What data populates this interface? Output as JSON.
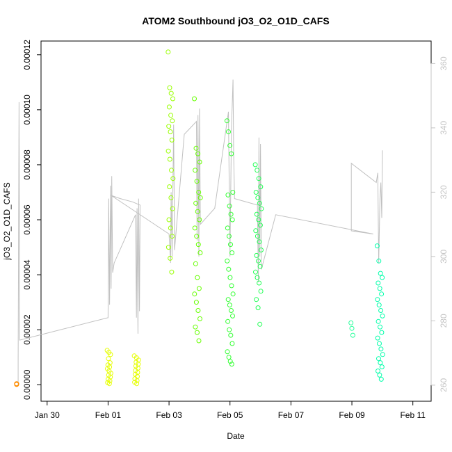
{
  "chart_data": {
    "type": "scatter",
    "title": "ATOM2 Southbound jO3_O2_O1D_CAFS",
    "xlabel": "Date",
    "ylabel": "jO3_O2_O1D_CAFS",
    "x_ticks": [
      "Jan 30",
      "Feb 01",
      "Feb 03",
      "Feb 05",
      "Feb 07",
      "Feb 09",
      "Feb 11"
    ],
    "y_ticks": [
      "0.00000",
      "0.00002",
      "0.00004",
      "0.00006",
      "0.00008",
      "0.00010",
      "0.00012"
    ],
    "y2_ticks": [
      "260",
      "280",
      "300",
      "320",
      "340",
      "360"
    ],
    "xlim_days": [
      -2.2,
      10.6
    ],
    "ylim": [
      -6e-06,
      0.000125
    ],
    "y2lim": [
      255,
      367
    ],
    "tick_day_values": [
      -2,
      0,
      2,
      4,
      6,
      8,
      10
    ],
    "y_tick_values": [
      0,
      2e-05,
      4e-05,
      6e-05,
      8e-05,
      0.0001,
      0.00012
    ],
    "y2_tick_values": [
      260,
      280,
      300,
      320,
      340,
      360
    ],
    "grid": false,
    "secondary_line_color": "#c0c0c0",
    "marker": "open-circle",
    "clusters": [
      {
        "day": -2.95,
        "spread": 0.05,
        "color": "#ff8c00",
        "values": [
          2e-07,
          3e-07,
          1e-07,
          2e-07,
          4e-07,
          2e-07,
          3e-07
        ]
      },
      {
        "day": 0.03,
        "spread": 0.06,
        "color": "#e6ff00",
        "values": [
          1.25e-05,
          1.18e-05,
          1.1e-05,
          9.5e-06,
          8e-06,
          7.2e-06,
          6.5e-06,
          5.8e-06,
          5e-06,
          4.2e-06,
          3.5e-06,
          2.8e-06,
          2e-06,
          1.4e-06,
          8e-07,
          4e-07
        ]
      },
      {
        "day": 0.93,
        "spread": 0.07,
        "color": "#e6ff00",
        "values": [
          1.05e-05,
          9.8e-06,
          9e-06,
          8.2e-06,
          7.5e-06,
          6.8e-06,
          6e-06,
          5.2e-06,
          4.5e-06,
          3.8e-06,
          3e-06,
          2.2e-06,
          1.5e-06,
          9e-07,
          4e-07
        ]
      },
      {
        "day": 2.05,
        "spread": 0.08,
        "color": "#99ff00",
        "values": [
          0.000121,
          0.000108,
          0.000106,
          0.000104,
          0.000101,
          9.8e-05,
          9.6e-05,
          9.4e-05,
          9.2e-05,
          8.9e-05,
          8.5e-05,
          8.2e-05,
          7.8e-05,
          7.5e-05,
          7.2e-05,
          6.8e-05,
          6.4e-05,
          6e-05,
          5.7e-05,
          5.4e-05,
          5e-05,
          4.6e-05,
          4.1e-05
        ]
      },
      {
        "day": 2.93,
        "spread": 0.1,
        "color": "#66ff00",
        "values": [
          0.000104,
          8.6e-05,
          8.4e-05,
          8.1e-05,
          7.8e-05,
          7.4e-05,
          7e-05,
          6.8e-05,
          6.6e-05,
          6.3e-05,
          6e-05,
          5.7e-05,
          5.4e-05,
          5.1e-05,
          4.8e-05,
          4.4e-05,
          3.9e-05,
          3.5e-05,
          3.3e-05,
          3e-05,
          2.7e-05,
          2.4e-05,
          2.1e-05,
          1.9e-05,
          1.6e-05
        ]
      },
      {
        "day": 4.0,
        "spread": 0.1,
        "color": "#33ff33",
        "values": [
          9.6e-05,
          9.2e-05,
          8.7e-05,
          8.4e-05,
          7e-05,
          6.9e-05,
          6.5e-05,
          6.2e-05,
          6e-05,
          5.7e-05,
          5.4e-05,
          5.1e-05,
          4.8e-05,
          4.5e-05,
          4.2e-05,
          3.9e-05,
          3.6e-05,
          3.3e-05,
          3.1e-05,
          2.9e-05,
          2.7e-05,
          2.5e-05,
          2.3e-05,
          2e-05,
          1.8e-05,
          1.5e-05,
          1.2e-05,
          1e-05,
          8.5e-06,
          7.5e-06
        ]
      },
      {
        "day": 4.93,
        "spread": 0.1,
        "color": "#22ff55",
        "values": [
          8e-05,
          7.8e-05,
          7.5e-05,
          7.2e-05,
          7e-05,
          6.8e-05,
          6.6e-05,
          6.4e-05,
          6.2e-05,
          6e-05,
          5.8e-05,
          5.6e-05,
          5.4e-05,
          5.2e-05,
          4.9e-05,
          4.7e-05,
          4.5e-05,
          4.3e-05,
          4.1e-05,
          3.9e-05,
          3.7e-05,
          3.4e-05,
          3.1e-05,
          2.8e-05,
          2.2e-05
        ]
      },
      {
        "day": 8.0,
        "spread": 0.03,
        "color": "#22ff99",
        "values": [
          2.25e-05,
          2.05e-05,
          1.8e-05
        ]
      },
      {
        "day": 8.92,
        "spread": 0.09,
        "color": "#00ffaa",
        "values": [
          5.05e-05,
          4.5e-05,
          4.05e-05,
          3.9e-05,
          3.7e-05,
          3.5e-05,
          3.3e-05,
          3.1e-05,
          2.9e-05,
          2.7e-05,
          2.5e-05,
          2.3e-05,
          2.1e-05,
          1.9e-05,
          1.7e-05,
          1.5e-05,
          1.3e-05,
          1.1e-05,
          9.5e-06,
          8e-06,
          6.5e-06,
          5e-06,
          3.5e-06,
          2e-06
        ]
      }
    ],
    "secondary_path": [
      [
        -2.95,
        260
      ],
      [
        -2.95,
        268
      ],
      [
        -2.92,
        348
      ],
      [
        -2.9,
        274
      ],
      [
        0.0,
        281
      ],
      [
        0.02,
        318
      ],
      [
        0.05,
        285
      ],
      [
        0.08,
        322
      ],
      [
        0.1,
        290
      ],
      [
        0.12,
        325
      ],
      [
        0.15,
        295
      ],
      [
        0.2,
        298
      ],
      [
        0.9,
        313
      ],
      [
        0.93,
        281
      ],
      [
        0.95,
        315
      ],
      [
        0.98,
        276
      ],
      [
        1.0,
        318
      ],
      [
        1.03,
        283
      ],
      [
        1.05,
        316
      ],
      [
        0.8,
        317
      ],
      [
        0.4,
        318
      ],
      [
        0.1,
        319
      ],
      [
        2.0,
        307
      ],
      [
        2.05,
        298
      ],
      [
        2.07,
        320
      ],
      [
        2.1,
        300
      ],
      [
        2.15,
        341
      ],
      [
        2.18,
        302
      ],
      [
        2.5,
        338
      ],
      [
        2.9,
        342
      ],
      [
        2.92,
        305
      ],
      [
        2.95,
        344
      ],
      [
        2.98,
        300
      ],
      [
        3.0,
        346
      ],
      [
        3.03,
        310
      ],
      [
        3.5,
        315
      ],
      [
        3.95,
        345
      ],
      [
        4.0,
        300
      ],
      [
        4.05,
        340
      ],
      [
        4.1,
        355
      ],
      [
        4.12,
        332
      ],
      [
        4.15,
        318
      ],
      [
        4.9,
        316
      ],
      [
        4.93,
        292
      ],
      [
        4.95,
        337
      ],
      [
        4.98,
        300
      ],
      [
        5.0,
        335
      ],
      [
        5.03,
        296
      ],
      [
        5.5,
        313
      ],
      [
        8.7,
        307
      ],
      [
        7.98,
        308
      ],
      [
        7.98,
        329
      ],
      [
        8.8,
        323
      ],
      [
        8.85,
        326
      ],
      [
        8.88,
        298
      ],
      [
        8.92,
        318
      ],
      [
        8.95,
        323
      ],
      [
        8.98,
        312
      ],
      [
        9.0,
        333
      ]
    ]
  }
}
